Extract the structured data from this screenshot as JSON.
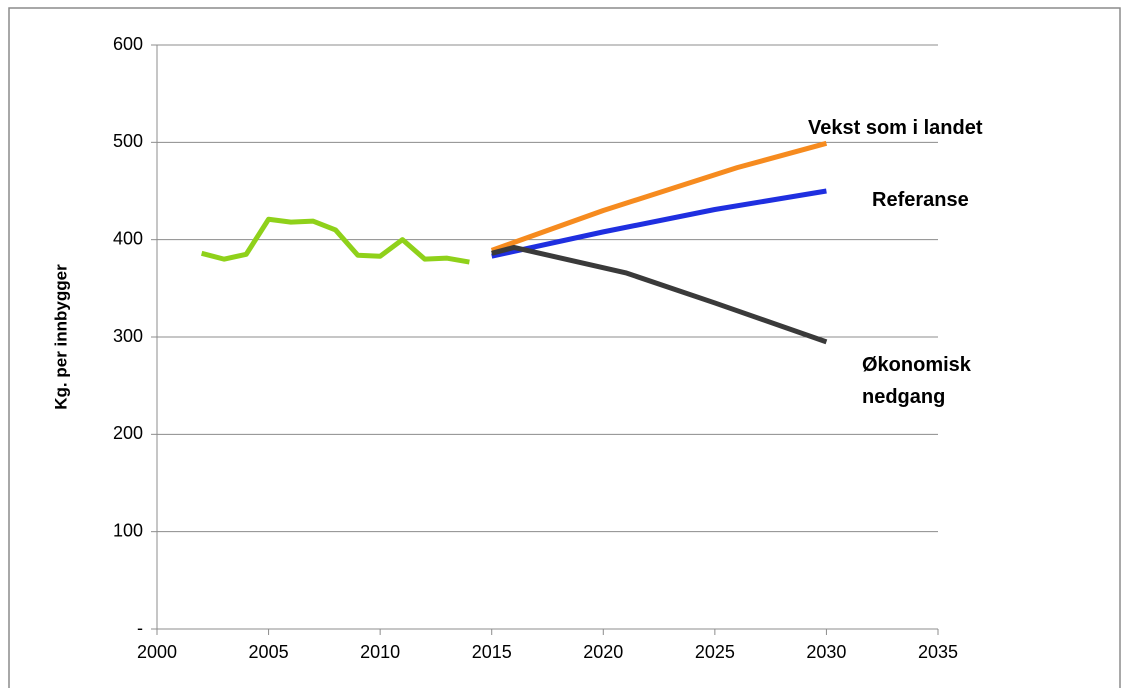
{
  "chart_data": {
    "type": "line",
    "ylabel": "Kg. per innbygger",
    "xlim": [
      2000,
      2035
    ],
    "xticks": [
      2000,
      2005,
      2010,
      2015,
      2020,
      2025,
      2030,
      2035
    ],
    "ylim": [
      0,
      600
    ],
    "yticks": [
      {
        "value": 0,
        "label": "-"
      },
      100,
      200,
      300,
      400,
      500,
      600
    ],
    "grid": true,
    "series": [
      {
        "color": "#8fd11a",
        "x": [
          2002,
          2003,
          2004,
          2005,
          2006,
          2007,
          2008,
          2009,
          2010,
          2011,
          2012,
          2013,
          2014
        ],
        "values": [
          386,
          380,
          385,
          421,
          418,
          419,
          410,
          384,
          383,
          400,
          380,
          381,
          377
        ]
      },
      {
        "name": "Vekst som i landet",
        "color": "#f68b1f",
        "x": [
          2015,
          2020,
          2026,
          2030
        ],
        "values": [
          389,
          430,
          474,
          499
        ]
      },
      {
        "name": "Referanse",
        "color": "#1f2fe0",
        "x": [
          2015,
          2020,
          2025,
          2030
        ],
        "values": [
          383,
          408,
          431,
          450
        ]
      },
      {
        "name": "Økonomisk nedgang",
        "color": "#3a3a3a",
        "x": [
          2015,
          2016,
          2021,
          2025,
          2030
        ],
        "values": [
          386,
          392,
          366,
          335,
          295
        ]
      }
    ]
  }
}
